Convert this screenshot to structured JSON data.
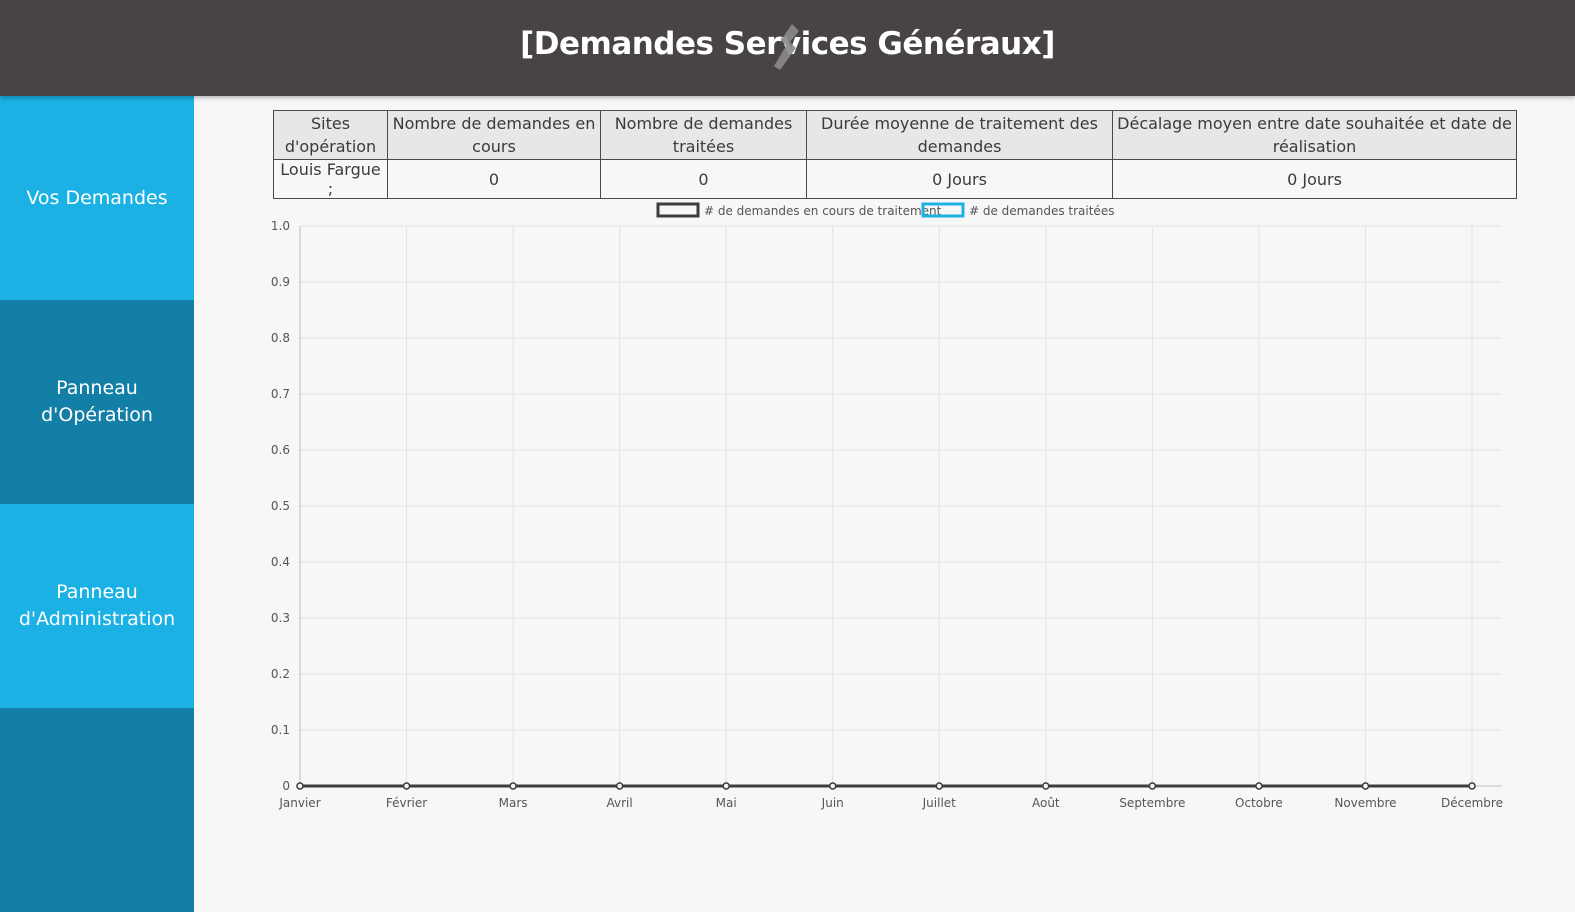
{
  "header": {
    "title": "[Demandes Services Généraux]",
    "icon": "wrench-icon"
  },
  "sidebar": {
    "items": [
      {
        "label": "Vos Demandes",
        "name": "sidebar-item-vos-demandes"
      },
      {
        "label": "Panneau d'Opération",
        "name": "sidebar-item-panneau-operation"
      },
      {
        "label": "Panneau d'Administration",
        "name": "sidebar-item-panneau-administration"
      },
      {
        "label": "",
        "name": "sidebar-item-extra"
      }
    ]
  },
  "stats_table": {
    "headers": [
      "Sites d'opération",
      "Nombre de demandes en cours",
      "Nombre de demandes traitées",
      "Durée moyenne de traitement des demandes",
      "Décalage moyen entre date souhaitée et date de réalisation"
    ],
    "rows": [
      [
        "Louis Fargue ;",
        "0",
        "0",
        "0 Jours",
        "0 Jours"
      ]
    ]
  },
  "colors": {
    "header_bg": "#474346",
    "sidebar_light": "#1bb1e4",
    "sidebar_dark": "#137fa6",
    "series_en_cours": "#3d3d3d",
    "series_traitees": "#1bb1e4"
  },
  "chart_data": {
    "type": "line",
    "categories": [
      "Janvier",
      "Février",
      "Mars",
      "Avril",
      "Mai",
      "Juin",
      "Juillet",
      "Août",
      "Septembre",
      "Octobre",
      "Novembre",
      "Décembre"
    ],
    "series": [
      {
        "name": "# de demandes en cours de traitement",
        "values": [
          0,
          0,
          0,
          0,
          0,
          0,
          0,
          0,
          0,
          0,
          0,
          0
        ]
      },
      {
        "name": "# de demandes traitées",
        "values": [
          0,
          0,
          0,
          0,
          0,
          0,
          0,
          0,
          0,
          0,
          0,
          0
        ]
      }
    ],
    "ylim": [
      0,
      1
    ],
    "yticks": [
      "0",
      "0.1",
      "0.2",
      "0.3",
      "0.4",
      "0.5",
      "0.6",
      "0.7",
      "0.8",
      "0.9",
      "1.0"
    ],
    "grid": true,
    "legend": "top"
  }
}
